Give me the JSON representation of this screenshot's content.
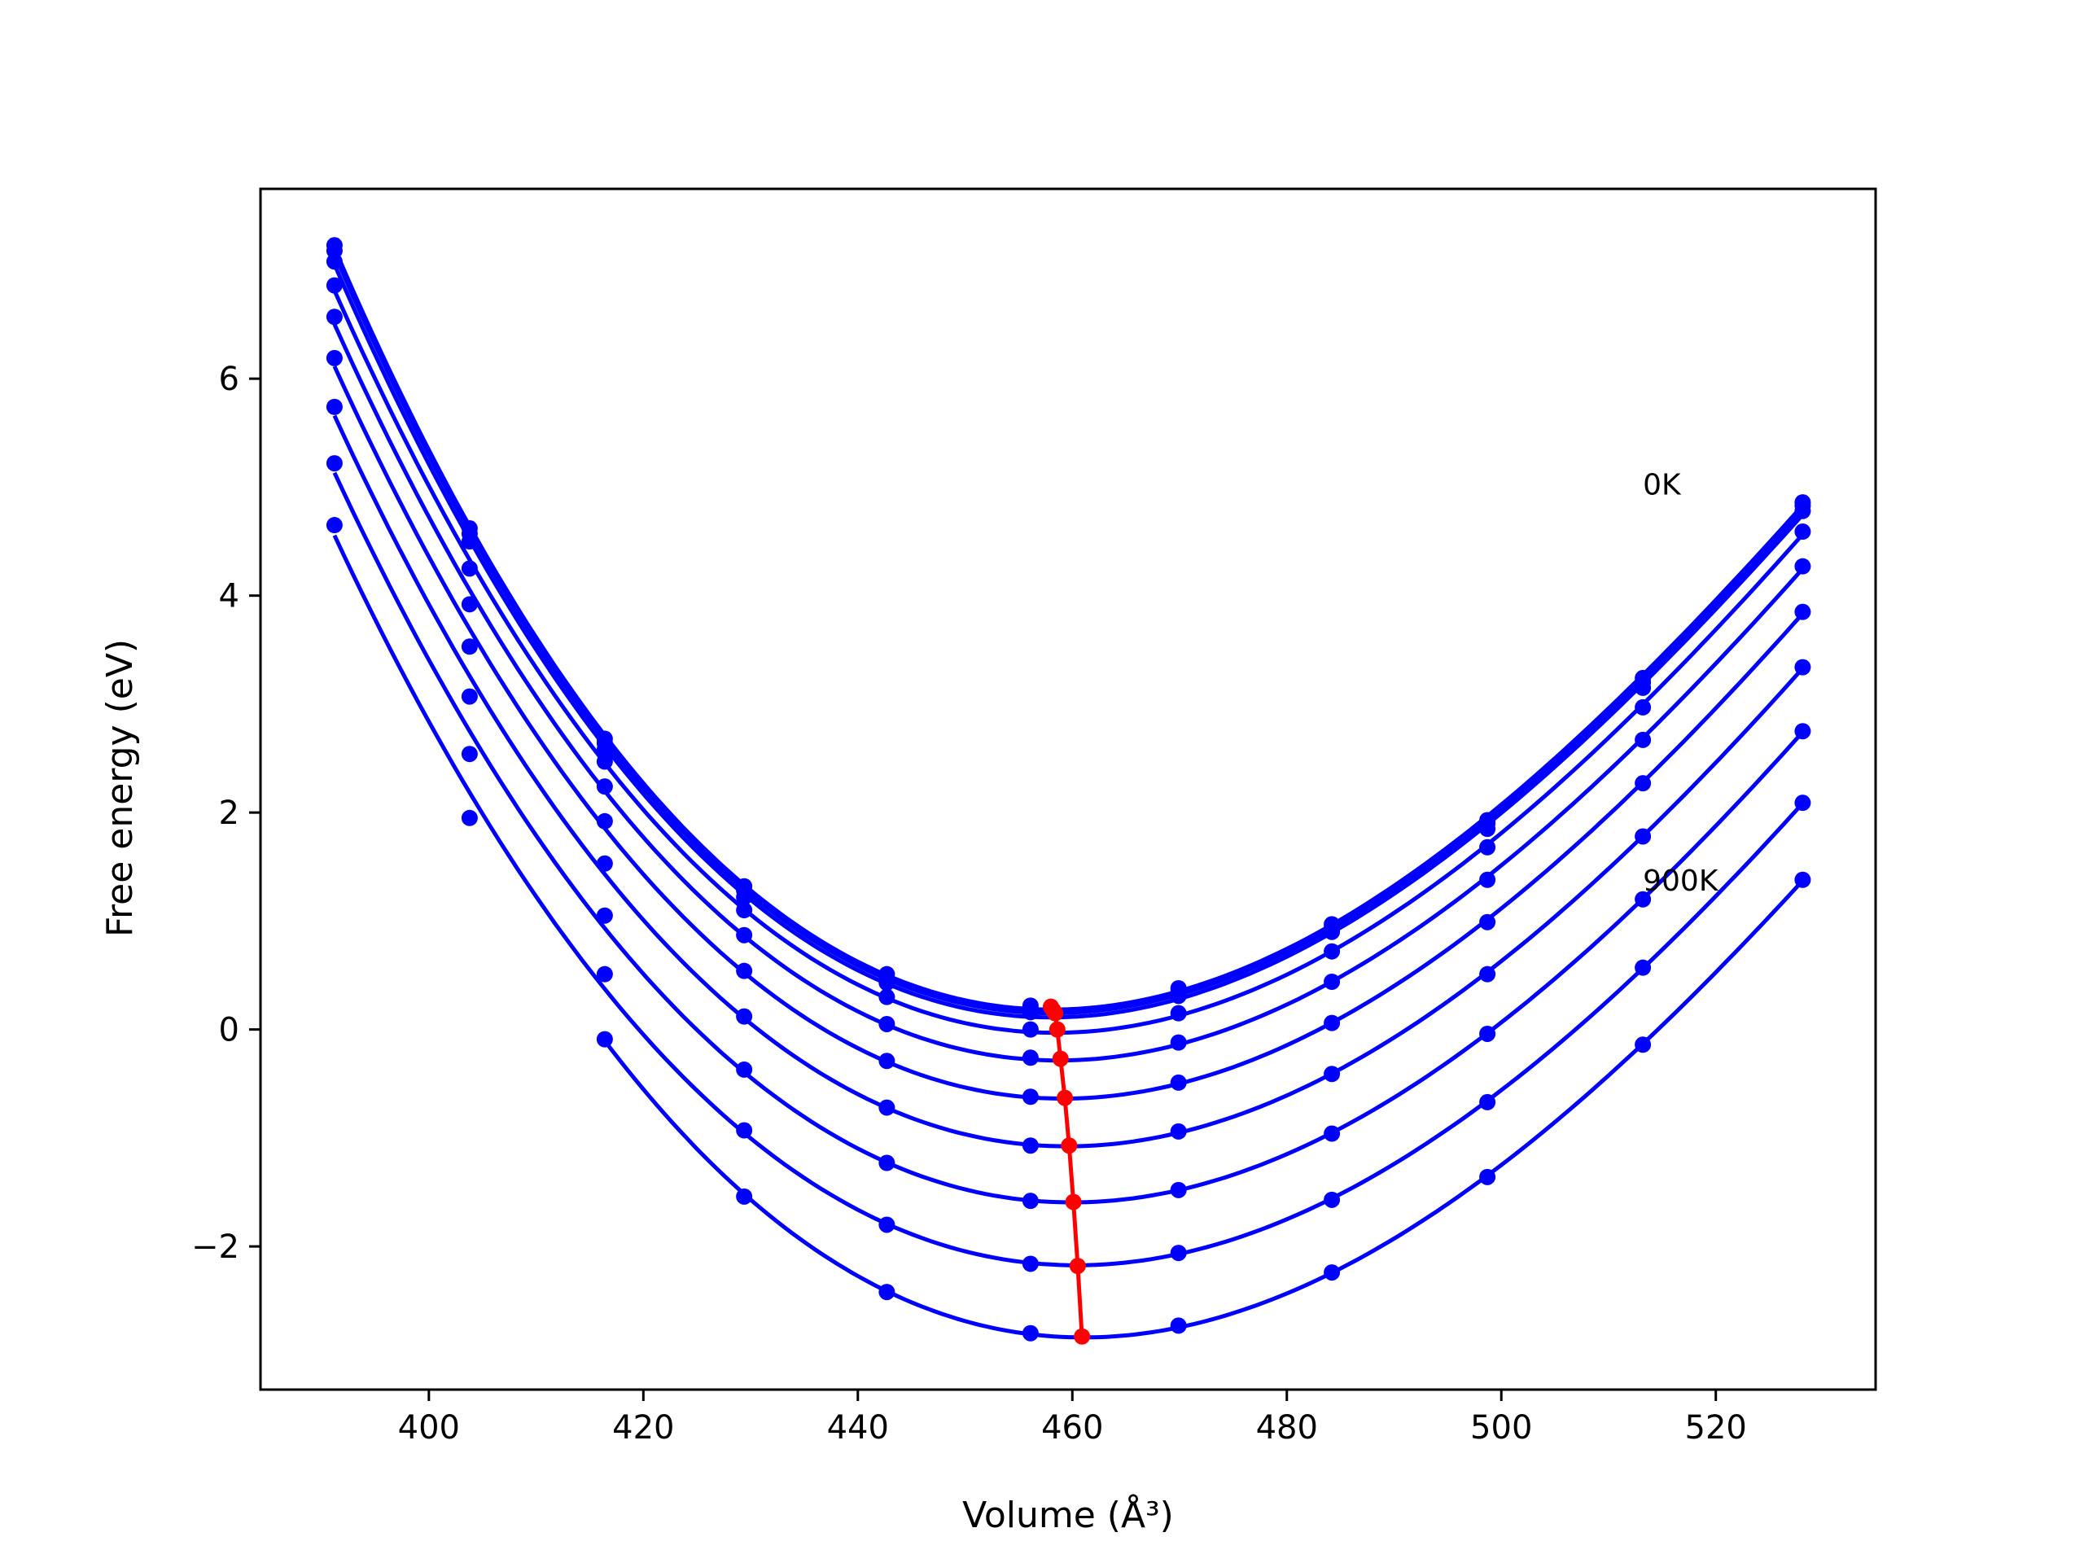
{
  "chart_data": {
    "type": "line",
    "xlabel": "Volume (Å³)",
    "ylabel": "Free energy (eV)",
    "xlim": [
      384.3,
      534.9
    ],
    "ylim": [
      -3.32,
      7.75
    ],
    "xticks": [
      400,
      420,
      440,
      460,
      480,
      500,
      520
    ],
    "yticks": [
      -2,
      0,
      2,
      4,
      6
    ],
    "grid": false,
    "legend": "none",
    "colors": {
      "curves": "#0000ff",
      "minimum_path": "#ff0000",
      "axes": "#000000"
    },
    "x": [
      391.2,
      403.8,
      416.4,
      429.4,
      442.7,
      456.1,
      469.9,
      484.2,
      498.7,
      513.2,
      528.1
    ],
    "series": [
      {
        "values": [
          7.23,
          4.62,
          2.68,
          1.32,
          0.51,
          0.22,
          0.38,
          0.97,
          1.93,
          3.24,
          4.86
        ]
      },
      {
        "values": [
          7.18,
          4.57,
          2.64,
          1.28,
          0.47,
          0.19,
          0.35,
          0.94,
          1.9,
          3.2,
          4.83
        ]
      },
      {
        "values": [
          7.08,
          4.5,
          2.58,
          1.22,
          0.43,
          0.16,
          0.31,
          0.9,
          1.85,
          3.15,
          4.78
        ]
      },
      {
        "values": [
          6.86,
          4.25,
          2.47,
          1.1,
          0.3,
          0.0,
          0.15,
          0.72,
          1.68,
          2.97,
          4.59
        ]
      },
      {
        "values": [
          6.57,
          3.92,
          2.24,
          0.87,
          0.05,
          -0.26,
          -0.12,
          0.44,
          1.38,
          2.67,
          4.27
        ]
      },
      {
        "values": [
          6.19,
          3.53,
          1.92,
          0.54,
          -0.29,
          -0.62,
          -0.49,
          0.06,
          0.99,
          2.27,
          3.85
        ]
      },
      {
        "values": [
          5.74,
          3.07,
          1.53,
          0.12,
          -0.72,
          -1.07,
          -0.94,
          -0.41,
          0.51,
          1.78,
          3.34
        ]
      },
      {
        "values": [
          5.22,
          2.54,
          1.05,
          -0.37,
          -1.23,
          -1.58,
          -1.48,
          -0.96,
          -0.04,
          1.2,
          2.75
        ]
      },
      {
        "values": [
          4.65,
          1.95,
          0.51,
          -0.93,
          -1.8,
          -2.16,
          -2.06,
          -1.57,
          -0.67,
          0.57,
          2.09
        ]
      },
      {
        "values": [
          null,
          null,
          -0.09,
          -1.54,
          -2.42,
          -2.8,
          -2.73,
          -2.24,
          -1.36,
          -0.14,
          1.38
        ]
      }
    ],
    "minimum_path": {
      "x": [
        458.0,
        458.2,
        458.4,
        458.6,
        458.9,
        459.3,
        459.7,
        460.1,
        460.5,
        460.9
      ],
      "y": [
        0.21,
        0.18,
        0.15,
        0.0,
        -0.27,
        -0.63,
        -1.07,
        -1.59,
        -2.18,
        -2.83
      ]
    },
    "annotations": [
      {
        "text": "0K",
        "x": 513.2,
        "y": 4.93
      },
      {
        "text": "900K",
        "x": 513.2,
        "y": 1.28
      }
    ]
  }
}
